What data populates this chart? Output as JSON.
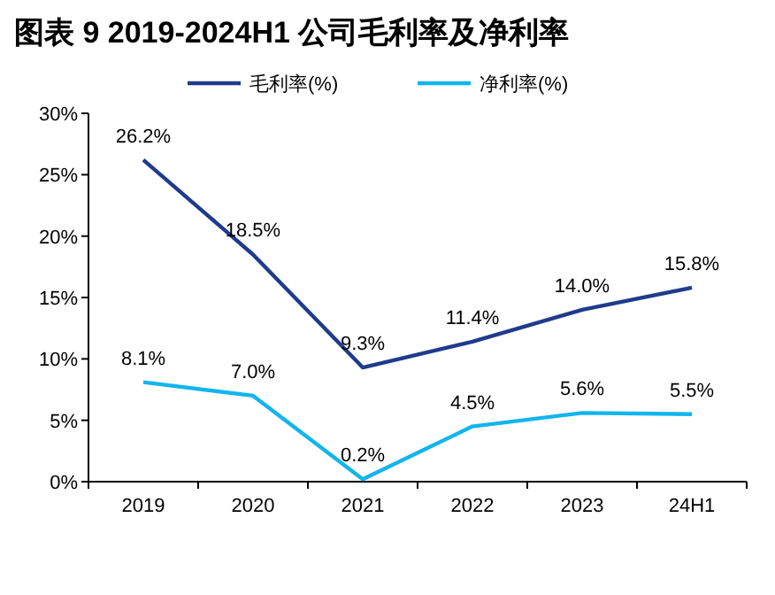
{
  "chart_data": {
    "type": "line",
    "title": "图表 9 2019-2024H1 公司毛利率及净利率",
    "categories": [
      "2019",
      "2020",
      "2021",
      "2022",
      "2023",
      "24H1"
    ],
    "series": [
      {
        "name": "毛利率(%)",
        "color": "#1f3b8c",
        "values": [
          26.2,
          18.5,
          9.3,
          11.4,
          14.0,
          15.8
        ],
        "value_labels": [
          "26.2%",
          "18.5%",
          "9.3%",
          "11.4%",
          "14.0%",
          "15.8%"
        ]
      },
      {
        "name": "净利率(%)",
        "color": "#12b5ec",
        "values": [
          8.1,
          7.0,
          0.2,
          4.5,
          5.6,
          5.5
        ],
        "value_labels": [
          "8.1%",
          "7.0%",
          "0.2%",
          "4.5%",
          "5.6%",
          "5.5%"
        ]
      }
    ],
    "ylim": [
      0,
      30
    ],
    "yticks": [
      {
        "value": 0,
        "label": "0%"
      },
      {
        "value": 5,
        "label": "5%"
      },
      {
        "value": 10,
        "label": "10%"
      },
      {
        "value": 15,
        "label": "15%"
      },
      {
        "value": 20,
        "label": "20%"
      },
      {
        "value": 25,
        "label": "25%"
      },
      {
        "value": 30,
        "label": "30%"
      }
    ],
    "legend": "top",
    "grid": false,
    "marker": "none",
    "line_style": "solid"
  }
}
